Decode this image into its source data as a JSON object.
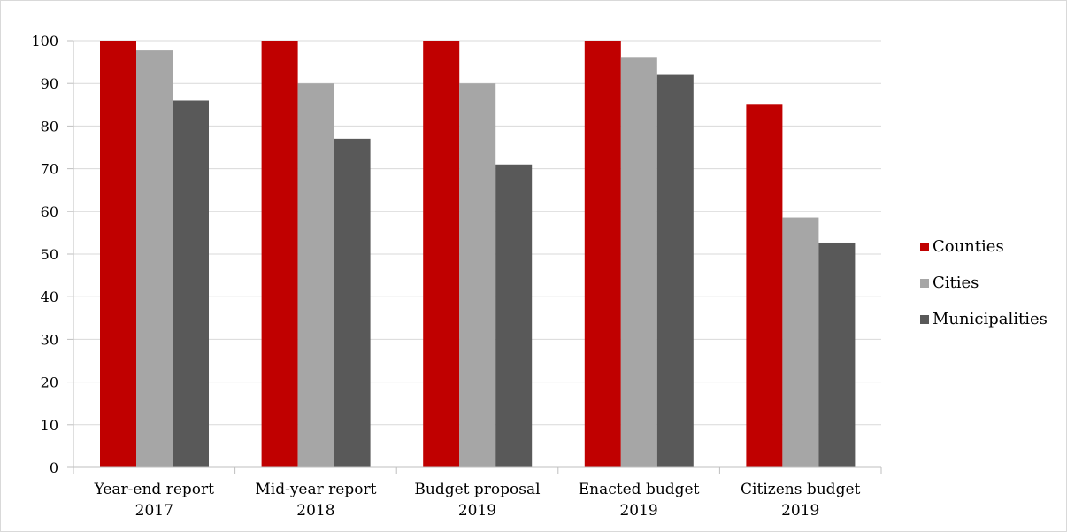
{
  "chart_data": {
    "type": "bar",
    "categories": [
      [
        "Year-end report",
        "2017"
      ],
      [
        "Mid-year report",
        "2018"
      ],
      [
        "Budget proposal",
        "2019"
      ],
      [
        "Enacted budget",
        "2019"
      ],
      [
        "Citizens budget",
        "2019"
      ]
    ],
    "series": [
      {
        "name": "Counties",
        "color": "#C00000",
        "values": [
          100,
          100,
          100,
          100,
          85
        ]
      },
      {
        "name": "Cities",
        "color": "#A6A6A6",
        "values": [
          97.7,
          90,
          90,
          96.2,
          58.6
        ]
      },
      {
        "name": "Municipalities",
        "color": "#595959",
        "values": [
          86,
          77,
          71,
          92,
          52.7
        ]
      }
    ],
    "title": "",
    "xlabel": "",
    "ylabel": "",
    "ylim": [
      0,
      100
    ],
    "yticks": [
      0,
      10,
      20,
      30,
      40,
      50,
      60,
      70,
      80,
      90,
      100
    ],
    "ytick_labels": [
      "0",
      "10",
      "20",
      "30",
      "40",
      "50",
      "60",
      "70",
      "80",
      "90",
      "100"
    ],
    "grid": true,
    "legend_position": "right"
  }
}
